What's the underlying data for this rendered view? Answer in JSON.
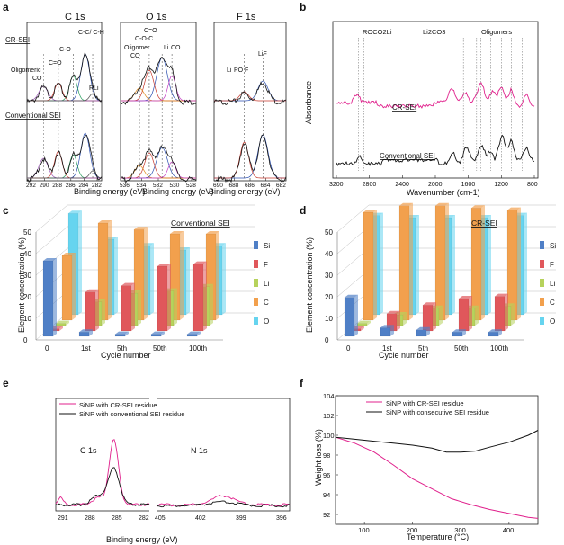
{
  "panel_letters": [
    "a",
    "b",
    "c",
    "d",
    "e",
    "f"
  ],
  "chart_data": [
    {
      "panel": "a",
      "type": "line",
      "subpanels": [
        {
          "title": "C 1s",
          "x_ticks": [
            "292",
            "290",
            "288",
            "286",
            "284",
            "282"
          ],
          "peak_labels": [
            "C-C/ C-H",
            "C-O",
            "C=O",
            "Oligomeric CO3",
            "RLi"
          ]
        },
        {
          "title": "O 1s",
          "x_ticks": [
            "536",
            "534",
            "532",
            "530",
            "528"
          ],
          "peak_labels": [
            "C=O",
            "C-O-C",
            "Oligomer CO3",
            "Li2CO3"
          ]
        },
        {
          "title": "F 1s",
          "x_ticks": [
            "690",
            "688",
            "686",
            "684",
            "682"
          ],
          "peak_labels": [
            "LiF",
            "LixPOyFz"
          ]
        }
      ],
      "row_labels": [
        "CR-SEI",
        "Conventional SEI"
      ],
      "xlabel": "Binding energy (eV)"
    },
    {
      "panel": "b",
      "type": "line",
      "x_ticks": [
        "3200",
        "2800",
        "2400",
        "2000",
        "1600",
        "1200",
        "800"
      ],
      "xlabel": "Wavenumber (cm-1)",
      "ylabel": "Absorbance",
      "series": [
        {
          "name": "CR-SEI"
        },
        {
          "name": "Conventional SEI"
        }
      ],
      "annotations": [
        "ROCO2Li",
        "Li2CO3",
        "Oligomers"
      ]
    },
    {
      "panel": "c",
      "type": "bar",
      "title": "Conventional SEI",
      "categories": [
        "0",
        "1st",
        "5th",
        "50th",
        "100th"
      ],
      "xlabel": "Cycle number",
      "ylabel": "Element concentration (%)",
      "y_ticks": [
        "0",
        "10",
        "20",
        "30",
        "40",
        "50"
      ],
      "ylim": [
        0,
        50
      ],
      "series": [
        {
          "name": "Si",
          "values": [
            35,
            2,
            1,
            1,
            1
          ]
        },
        {
          "name": "F",
          "values": [
            1,
            18,
            21,
            30,
            31
          ]
        },
        {
          "name": "Li",
          "values": [
            1,
            11,
            15,
            16,
            18
          ]
        },
        {
          "name": "C",
          "values": [
            30,
            45,
            42,
            40,
            40
          ]
        },
        {
          "name": "O",
          "values": [
            47,
            35,
            32,
            30,
            32
          ]
        }
      ]
    },
    {
      "panel": "d",
      "type": "bar",
      "title": "CR-SEI",
      "categories": [
        "0",
        "1st",
        "5th",
        "50th",
        "100th"
      ],
      "xlabel": "Cycle number",
      "ylabel": "Element concentration (%)",
      "y_ticks": [
        "0",
        "10",
        "20",
        "30",
        "40",
        "50"
      ],
      "ylim": [
        0,
        50
      ],
      "series": [
        {
          "name": "Si",
          "values": [
            18,
            4,
            3,
            2,
            2
          ]
        },
        {
          "name": "F",
          "values": [
            1,
            8,
            12,
            15,
            16
          ]
        },
        {
          "name": "Li",
          "values": [
            1,
            5,
            8,
            8,
            9
          ]
        },
        {
          "name": "C",
          "values": [
            50,
            53,
            53,
            52,
            51
          ]
        },
        {
          "name": "O",
          "values": [
            46,
            45,
            45,
            45,
            46
          ]
        }
      ]
    },
    {
      "panel": "e",
      "type": "line",
      "xlabel": "Binding energy (eV)",
      "subpanels": [
        {
          "title": "C 1s",
          "x_ticks": [
            "291",
            "288",
            "285",
            "282"
          ]
        },
        {
          "title": "N 1s",
          "x_ticks": [
            "405",
            "402",
            "399",
            "396"
          ]
        }
      ],
      "series": [
        {
          "name": "SiNP with CR-SEI residue",
          "color": "#e0208c"
        },
        {
          "name": "SiNP with conventional SEI residue",
          "color": "#111111"
        }
      ]
    },
    {
      "panel": "f",
      "type": "line",
      "xlabel": "Temperature (°C)",
      "ylabel": "Weight loss (%)",
      "x_ticks": [
        "100",
        "200",
        "300",
        "400"
      ],
      "y_ticks": [
        "92",
        "94",
        "96",
        "98",
        "100",
        "102",
        "104"
      ],
      "xlim": [
        40,
        460
      ],
      "ylim": [
        91,
        104
      ],
      "series": [
        {
          "name": "SiNP with CR-SEI residue",
          "color": "#e0208c",
          "x": [
            40,
            80,
            120,
            160,
            200,
            240,
            280,
            320,
            360,
            400,
            440,
            460
          ],
          "y": [
            99.8,
            99.2,
            98.3,
            97.0,
            95.6,
            94.6,
            93.6,
            93.0,
            92.5,
            92.1,
            91.7,
            91.6
          ]
        },
        {
          "name": "SiNP with consecutive SEI residue",
          "color": "#111111",
          "x": [
            40,
            80,
            120,
            160,
            200,
            240,
            270,
            300,
            330,
            360,
            400,
            440,
            460
          ],
          "y": [
            99.8,
            99.6,
            99.4,
            99.2,
            99.0,
            98.7,
            98.3,
            98.3,
            98.4,
            98.8,
            99.3,
            100.0,
            100.5
          ]
        }
      ]
    }
  ],
  "colors": {
    "Si": "#4f7fc6",
    "F": "#e0575b",
    "Li": "#b6d25c",
    "C": "#f2a04d",
    "O": "#66d4ef",
    "pink": "#e0208c",
    "dark": "#111111"
  }
}
